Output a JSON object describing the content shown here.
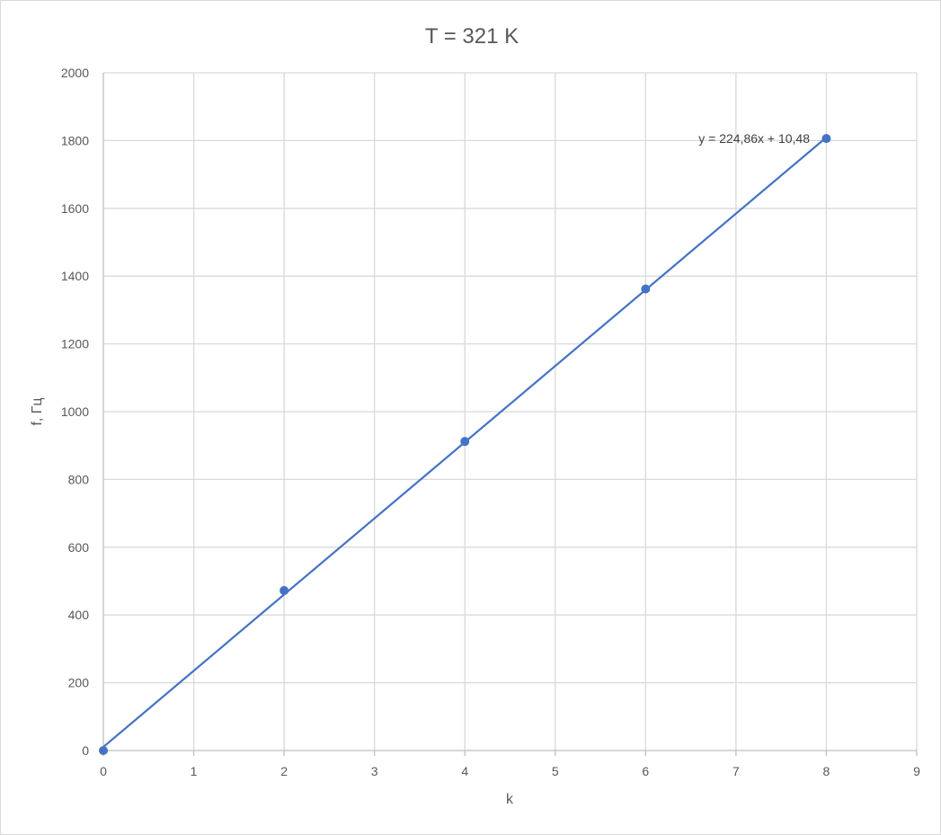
{
  "chart_data": {
    "type": "scatter",
    "title": "T = 321 K",
    "xlabel": "k",
    "ylabel": "f, Гц",
    "xlim": [
      0,
      9
    ],
    "ylim": [
      0,
      2000
    ],
    "x_ticks": [
      0,
      1,
      2,
      3,
      4,
      5,
      6,
      7,
      8,
      9
    ],
    "y_ticks": [
      0,
      200,
      400,
      600,
      800,
      1000,
      1200,
      1400,
      1600,
      1800,
      2000
    ],
    "grid": true,
    "legend": "none",
    "series": [
      {
        "x": [
          0,
          2,
          4,
          6,
          8
        ],
        "y": [
          0,
          472,
          912,
          1362,
          1806
        ],
        "color": "#4472c4"
      }
    ],
    "trendline": {
      "type": "linear",
      "slope": 224.86,
      "intercept": 10.48,
      "x_range": [
        0,
        8
      ],
      "color": "#4472c4",
      "equation_label": "y = 224,86x + 10,48"
    }
  }
}
